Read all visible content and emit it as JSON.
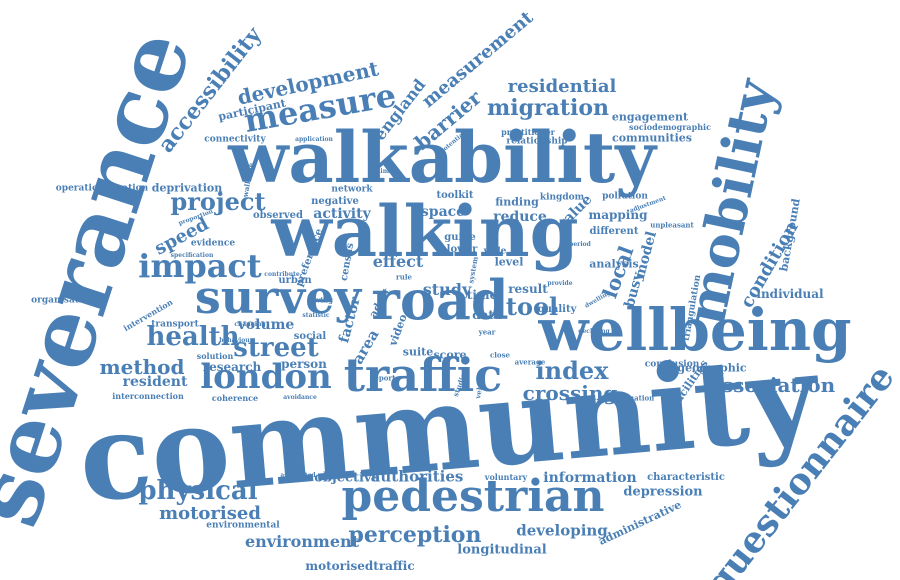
{
  "text_color": "#4a7fb5",
  "words": [
    {
      "id": "community",
      "text": "community"
    },
    {
      "id": "severance",
      "text": "severance"
    },
    {
      "id": "walkability",
      "text": "walkability"
    },
    {
      "id": "walking",
      "text": "walking"
    },
    {
      "id": "wellbeing",
      "text": "wellbeing"
    },
    {
      "id": "pedestrian",
      "text": "pedestrian"
    },
    {
      "id": "road",
      "text": "road"
    },
    {
      "id": "survey",
      "text": "survey"
    },
    {
      "id": "traffic",
      "text": "traffic"
    },
    {
      "id": "mobility",
      "text": "mobility"
    },
    {
      "id": "london",
      "text": "london"
    },
    {
      "id": "questionnaire",
      "text": "questionnaire"
    },
    {
      "id": "impact",
      "text": "impact"
    },
    {
      "id": "measure",
      "text": "measure"
    },
    {
      "id": "health",
      "text": "health"
    },
    {
      "id": "street",
      "text": "street"
    },
    {
      "id": "accessibility",
      "text": "accessibility"
    },
    {
      "id": "migration",
      "text": "migration"
    },
    {
      "id": "development",
      "text": "development"
    },
    {
      "id": "project",
      "text": "project"
    },
    {
      "id": "tool",
      "text": "tool"
    },
    {
      "id": "index",
      "text": "index"
    },
    {
      "id": "physical",
      "text": "physical"
    },
    {
      "id": "perception",
      "text": "perception"
    },
    {
      "id": "association",
      "text": "association"
    },
    {
      "id": "method",
      "text": "method"
    },
    {
      "id": "crossing",
      "text": "crossing"
    },
    {
      "id": "barrier",
      "text": "barrier"
    },
    {
      "id": "measurement-top",
      "text": "measurement"
    },
    {
      "id": "residential",
      "text": "residential"
    },
    {
      "id": "england",
      "text": "england"
    },
    {
      "id": "condition",
      "text": "condition"
    },
    {
      "id": "local",
      "text": "local"
    },
    {
      "id": "speed",
      "text": "speed"
    },
    {
      "id": "motorised",
      "text": "motorised"
    },
    {
      "id": "environment",
      "text": "environment"
    },
    {
      "id": "resident",
      "text": "resident"
    },
    {
      "id": "volume",
      "text": "volume"
    },
    {
      "id": "information",
      "text": "information"
    },
    {
      "id": "developing",
      "text": "developing"
    },
    {
      "id": "effect",
      "text": "effect"
    },
    {
      "id": "study",
      "text": "study"
    },
    {
      "id": "activity",
      "text": "activity"
    },
    {
      "id": "space",
      "text": "space"
    },
    {
      "id": "reduce",
      "text": "reduce"
    },
    {
      "id": "authorities",
      "text": "authorities"
    },
    {
      "id": "objective",
      "text": "objective"
    },
    {
      "id": "longitudinal",
      "text": "longitudinal"
    },
    {
      "id": "motorisedtraffic",
      "text": "motorisedtraffic"
    },
    {
      "id": "administrative",
      "text": "administrative"
    },
    {
      "id": "depression",
      "text": "depression"
    },
    {
      "id": "research",
      "text": "research"
    },
    {
      "id": "person",
      "text": "person"
    },
    {
      "id": "busy",
      "text": "busy"
    },
    {
      "id": "model",
      "text": "model"
    },
    {
      "id": "value",
      "text": "value"
    },
    {
      "id": "individual",
      "text": "individual"
    },
    {
      "id": "background",
      "text": "background"
    },
    {
      "id": "analysis",
      "text": "analysis"
    },
    {
      "id": "mapping",
      "text": "mapping"
    },
    {
      "id": "geographic",
      "text": "geographic"
    },
    {
      "id": "facilities",
      "text": "facilities"
    },
    {
      "id": "engagement",
      "text": "engagement"
    },
    {
      "id": "communities",
      "text": "communities"
    },
    {
      "id": "participant",
      "text": "participant"
    },
    {
      "id": "area",
      "text": "area"
    },
    {
      "id": "factor",
      "text": "factor"
    },
    {
      "id": "result",
      "text": "result"
    },
    {
      "id": "level",
      "text": "level"
    },
    {
      "id": "finding",
      "text": "finding"
    },
    {
      "id": "score",
      "text": "score"
    },
    {
      "id": "quality",
      "text": "quality"
    },
    {
      "id": "data",
      "text": "data"
    },
    {
      "id": "time",
      "text": "time"
    },
    {
      "id": "deprivation",
      "text": "deprivation"
    },
    {
      "id": "negative",
      "text": "negative"
    },
    {
      "id": "network",
      "text": "network"
    },
    {
      "id": "toolkit",
      "text": "toolkit"
    },
    {
      "id": "kingdom",
      "text": "kingdom"
    },
    {
      "id": "different",
      "text": "different"
    },
    {
      "id": "pollution",
      "text": "pollution"
    },
    {
      "id": "guide",
      "text": "guide"
    },
    {
      "id": "lower",
      "text": "lower"
    },
    {
      "id": "adult",
      "text": "adult"
    },
    {
      "id": "video",
      "text": "video"
    },
    {
      "id": "census",
      "text": "census"
    },
    {
      "id": "suite",
      "text": "suite"
    },
    {
      "id": "social",
      "text": "social"
    },
    {
      "id": "urban",
      "text": "urban"
    },
    {
      "id": "transport",
      "text": "transport"
    },
    {
      "id": "observed",
      "text": "observed"
    },
    {
      "id": "evidence",
      "text": "evidence"
    },
    {
      "id": "preference",
      "text": "preference"
    },
    {
      "id": "relationship",
      "text": "relationship"
    },
    {
      "id": "practitioner",
      "text": "practitioner"
    },
    {
      "id": "connectivity",
      "text": "connectivity"
    },
    {
      "id": "operationalisation",
      "text": "operationalisation"
    },
    {
      "id": "organisation",
      "text": "organisation"
    },
    {
      "id": "interconnection",
      "text": "interconnection"
    },
    {
      "id": "coherence",
      "text": "coherence"
    },
    {
      "id": "characteristic",
      "text": "characteristic"
    },
    {
      "id": "conclusion",
      "text": "conclusion"
    },
    {
      "id": "triangulation",
      "text": "triangulation"
    },
    {
      "id": "environmental",
      "text": "environmental"
    },
    {
      "id": "voluntary",
      "text": "voluntary"
    },
    {
      "id": "intervention",
      "text": "intervention"
    },
    {
      "id": "solution",
      "text": "solution"
    },
    {
      "id": "valuation",
      "text": "valuation"
    },
    {
      "id": "sociodemographic",
      "text": "sociodemographic"
    },
    {
      "id": "unpleasant",
      "text": "unpleasant"
    },
    {
      "id": "application",
      "text": "application"
    },
    {
      "id": "estimate",
      "text": "estimate"
    },
    {
      "id": "walkable",
      "text": "walkable"
    },
    {
      "id": "wale",
      "text": "wale"
    },
    {
      "id": "vehicle",
      "text": "vehicle"
    },
    {
      "id": "average",
      "text": "average"
    },
    {
      "id": "associated",
      "text": "associated"
    },
    {
      "id": "close",
      "text": "close"
    },
    {
      "id": "report",
      "text": "report"
    },
    {
      "id": "proportion",
      "text": "proportion"
    },
    {
      "id": "living",
      "text": "living"
    },
    {
      "id": "studies",
      "text": "studies"
    },
    {
      "id": "rule",
      "text": "rule"
    },
    {
      "id": "year",
      "text": "year"
    },
    {
      "id": "behaviour",
      "text": "behaviour"
    },
    {
      "id": "avoidance",
      "text": "avoidance"
    },
    {
      "id": "contribute",
      "text": "contribute"
    },
    {
      "id": "system",
      "text": "system"
    },
    {
      "id": "potential",
      "text": "potential"
    },
    {
      "id": "declining",
      "text": "declining"
    },
    {
      "id": "provide",
      "text": "provide"
    },
    {
      "id": "dwelling",
      "text": "dwelling"
    },
    {
      "id": "changing",
      "text": "changing"
    },
    {
      "id": "statistic",
      "text": "statistic"
    },
    {
      "id": "specification",
      "text": "specification"
    },
    {
      "id": "period",
      "text": "period"
    },
    {
      "id": "adjustment",
      "text": "adjustment"
    }
  ]
}
